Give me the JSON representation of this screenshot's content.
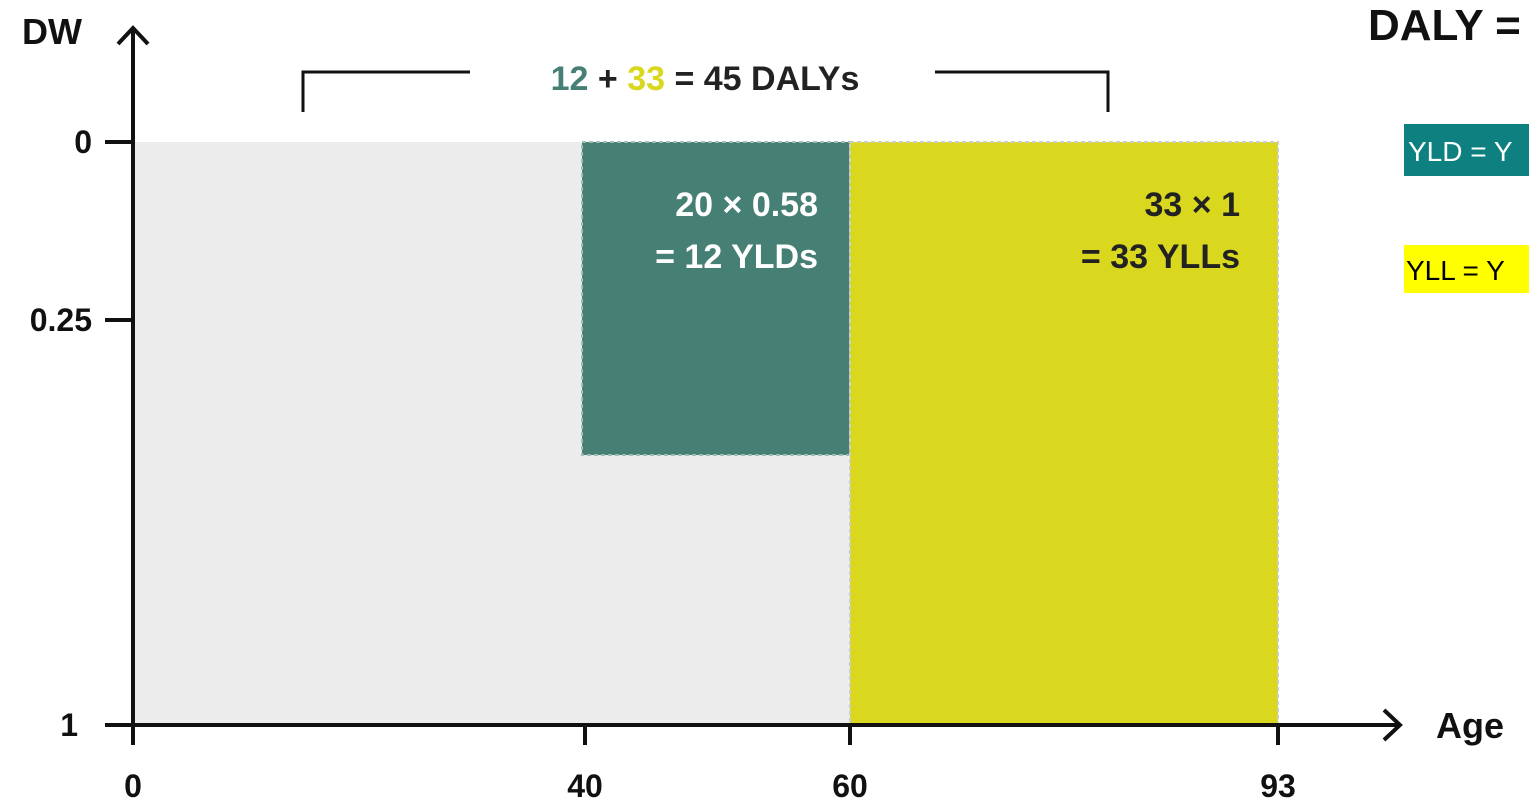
{
  "axes": {
    "y_label": "DW",
    "x_label": "Age",
    "y_ticks": [
      "0",
      "0.25",
      "1"
    ],
    "x_ticks": [
      "0",
      "40",
      "60",
      "93"
    ]
  },
  "total": {
    "yld": "12",
    "plus": "+",
    "yll": "33",
    "rest": "= 45 DALYs"
  },
  "yld_box": {
    "lines": [
      "20 × 0.58",
      "= 12 YLDs"
    ]
  },
  "yll_box": {
    "lines": [
      "33 × 1",
      "= 33 YLLs"
    ]
  },
  "formula": {
    "title": "DALY =",
    "yld": "YLD = Y",
    "yll": "YLL = Y"
  }
}
